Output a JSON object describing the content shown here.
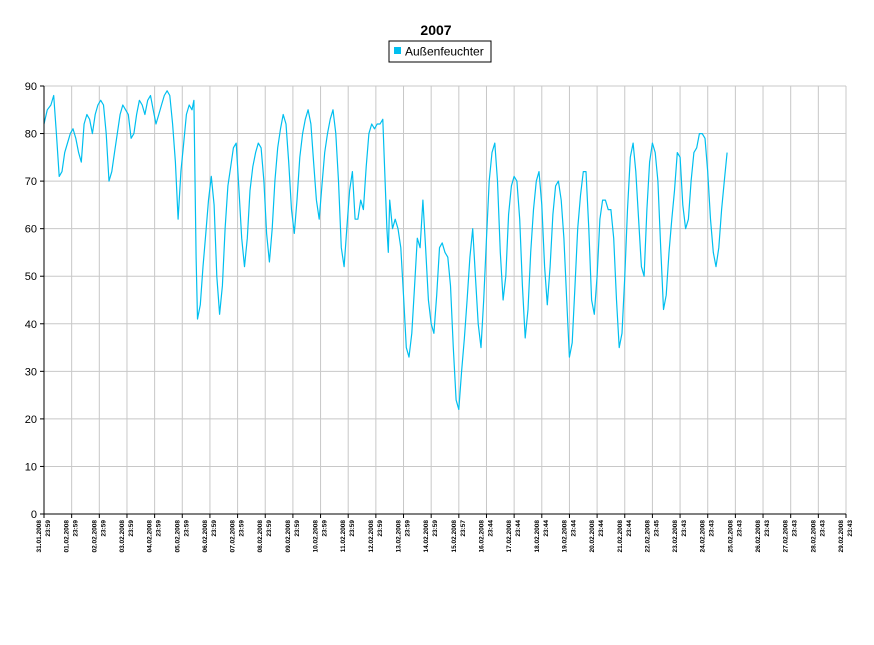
{
  "chart_data": {
    "type": "line",
    "title": "2007",
    "xlabel": "",
    "ylabel": "",
    "ylim": [
      0,
      90
    ],
    "yticks": [
      0,
      10,
      20,
      30,
      40,
      50,
      60,
      70,
      80,
      90
    ],
    "grid": true,
    "legend_position": "top-center",
    "series": [
      {
        "name": "Außenfeuchter",
        "color": "#00BFEF",
        "x": [
          "31.01.2008 23:59",
          "01.02.2008 23:59",
          "02.02.2008 23:59",
          "03.02.2008 23:59",
          "04.02.2008 23:59",
          "05.02.2008 23:59",
          "06.02.2008 23:59",
          "07.02.2008 23:59",
          "08.02.2008 23:59",
          "09.02.2008 23:59",
          "10.02.2008 23:59",
          "11.02.2008 23:59",
          "12.02.2008 23:59",
          "13.02.2008 23:59",
          "14.02.2008 23:59",
          "15.02.2008 23:57",
          "16.02.2008 23:44",
          "17.02.2008 23:44",
          "18.02.2008 23:44",
          "19.02.2008 23:44",
          "20.02.2008 23:44",
          "21.02.2008 23:44",
          "22.02.2008 23:45",
          "23.02.2008 23:43",
          "24.02.2008 23:43",
          "25.02.2008 23:43",
          "26.02.2008 23:43",
          "27.02.2008 23:43",
          "28.02.2008 23:43",
          "29.02.2008 23:43"
        ],
        "points": [
          [
            0.0,
            82
          ],
          [
            0.12,
            85
          ],
          [
            0.25,
            86
          ],
          [
            0.35,
            88
          ],
          [
            0.45,
            80
          ],
          [
            0.55,
            71
          ],
          [
            0.65,
            72
          ],
          [
            0.75,
            76
          ],
          [
            0.85,
            78
          ],
          [
            0.95,
            80
          ],
          [
            1.05,
            81
          ],
          [
            1.15,
            79
          ],
          [
            1.25,
            76
          ],
          [
            1.35,
            74
          ],
          [
            1.45,
            82
          ],
          [
            1.55,
            84
          ],
          [
            1.65,
            83
          ],
          [
            1.75,
            80
          ],
          [
            1.85,
            84
          ],
          [
            1.95,
            86
          ],
          [
            2.05,
            87
          ],
          [
            2.15,
            86
          ],
          [
            2.25,
            80
          ],
          [
            2.35,
            70
          ],
          [
            2.45,
            72
          ],
          [
            2.55,
            76
          ],
          [
            2.65,
            80
          ],
          [
            2.75,
            84
          ],
          [
            2.85,
            86
          ],
          [
            2.95,
            85
          ],
          [
            3.05,
            84
          ],
          [
            3.15,
            79
          ],
          [
            3.25,
            80
          ],
          [
            3.35,
            84
          ],
          [
            3.45,
            87
          ],
          [
            3.55,
            86
          ],
          [
            3.65,
            84
          ],
          [
            3.75,
            87
          ],
          [
            3.85,
            88
          ],
          [
            3.95,
            85
          ],
          [
            4.05,
            82
          ],
          [
            4.15,
            84
          ],
          [
            4.25,
            86
          ],
          [
            4.35,
            88
          ],
          [
            4.45,
            89
          ],
          [
            4.55,
            88
          ],
          [
            4.65,
            82
          ],
          [
            4.75,
            74
          ],
          [
            4.85,
            62
          ],
          [
            4.95,
            72
          ],
          [
            5.05,
            78
          ],
          [
            5.15,
            84
          ],
          [
            5.25,
            86
          ],
          [
            5.35,
            85
          ],
          [
            5.42,
            87
          ],
          [
            5.5,
            54
          ],
          [
            5.55,
            41
          ],
          [
            5.65,
            44
          ],
          [
            5.75,
            52
          ],
          [
            5.85,
            59
          ],
          [
            5.95,
            66
          ],
          [
            6.05,
            71
          ],
          [
            6.15,
            65
          ],
          [
            6.25,
            50
          ],
          [
            6.35,
            42
          ],
          [
            6.45,
            48
          ],
          [
            6.55,
            60
          ],
          [
            6.65,
            69
          ],
          [
            6.75,
            73
          ],
          [
            6.85,
            77
          ],
          [
            6.95,
            78
          ],
          [
            7.05,
            68
          ],
          [
            7.15,
            58
          ],
          [
            7.25,
            52
          ],
          [
            7.35,
            58
          ],
          [
            7.45,
            68
          ],
          [
            7.55,
            73
          ],
          [
            7.65,
            76
          ],
          [
            7.75,
            78
          ],
          [
            7.85,
            77
          ],
          [
            7.95,
            70
          ],
          [
            8.05,
            59
          ],
          [
            8.15,
            53
          ],
          [
            8.25,
            60
          ],
          [
            8.35,
            70
          ],
          [
            8.45,
            77
          ],
          [
            8.55,
            81
          ],
          [
            8.65,
            84
          ],
          [
            8.75,
            82
          ],
          [
            8.85,
            74
          ],
          [
            8.95,
            64
          ],
          [
            9.05,
            59
          ],
          [
            9.15,
            66
          ],
          [
            9.25,
            75
          ],
          [
            9.35,
            80
          ],
          [
            9.45,
            83
          ],
          [
            9.55,
            85
          ],
          [
            9.65,
            82
          ],
          [
            9.75,
            74
          ],
          [
            9.85,
            66
          ],
          [
            9.95,
            62
          ],
          [
            10.05,
            69
          ],
          [
            10.15,
            76
          ],
          [
            10.25,
            80
          ],
          [
            10.35,
            83
          ],
          [
            10.45,
            85
          ],
          [
            10.55,
            80
          ],
          [
            10.65,
            70
          ],
          [
            10.75,
            56
          ],
          [
            10.85,
            52
          ],
          [
            10.95,
            60
          ],
          [
            11.05,
            68
          ],
          [
            11.15,
            72
          ],
          [
            11.25,
            62
          ],
          [
            11.35,
            62
          ],
          [
            11.45,
            66
          ],
          [
            11.55,
            64
          ],
          [
            11.65,
            73
          ],
          [
            11.75,
            80
          ],
          [
            11.85,
            82
          ],
          [
            11.95,
            81
          ],
          [
            12.05,
            82
          ],
          [
            12.15,
            82
          ],
          [
            12.25,
            83
          ],
          [
            12.3,
            75
          ],
          [
            12.4,
            60
          ],
          [
            12.45,
            55
          ],
          [
            12.5,
            66
          ],
          [
            12.6,
            60
          ],
          [
            12.7,
            62
          ],
          [
            12.8,
            60
          ],
          [
            12.9,
            56
          ],
          [
            13.0,
            46
          ],
          [
            13.1,
            35
          ],
          [
            13.2,
            33
          ],
          [
            13.3,
            38
          ],
          [
            13.4,
            48
          ],
          [
            13.5,
            58
          ],
          [
            13.6,
            56
          ],
          [
            13.7,
            66
          ],
          [
            13.8,
            56
          ],
          [
            13.9,
            45
          ],
          [
            14.0,
            40
          ],
          [
            14.1,
            38
          ],
          [
            14.2,
            46
          ],
          [
            14.3,
            56
          ],
          [
            14.4,
            57
          ],
          [
            14.5,
            55
          ],
          [
            14.6,
            54
          ],
          [
            14.7,
            48
          ],
          [
            14.8,
            35
          ],
          [
            14.9,
            24
          ],
          [
            15.0,
            22
          ],
          [
            15.1,
            30
          ],
          [
            15.2,
            37
          ],
          [
            15.3,
            45
          ],
          [
            15.4,
            54
          ],
          [
            15.5,
            60
          ],
          [
            15.6,
            50
          ],
          [
            15.7,
            40
          ],
          [
            15.8,
            35
          ],
          [
            15.9,
            45
          ],
          [
            16.0,
            58
          ],
          [
            16.1,
            70
          ],
          [
            16.2,
            76
          ],
          [
            16.3,
            78
          ],
          [
            16.4,
            70
          ],
          [
            16.5,
            55
          ],
          [
            16.6,
            45
          ],
          [
            16.7,
            50
          ],
          [
            16.8,
            63
          ],
          [
            16.9,
            69
          ],
          [
            17.0,
            71
          ],
          [
            17.1,
            70
          ],
          [
            17.2,
            62
          ],
          [
            17.3,
            48
          ],
          [
            17.4,
            37
          ],
          [
            17.5,
            43
          ],
          [
            17.6,
            55
          ],
          [
            17.7,
            64
          ],
          [
            17.8,
            70
          ],
          [
            17.9,
            72
          ],
          [
            18.0,
            65
          ],
          [
            18.1,
            52
          ],
          [
            18.2,
            44
          ],
          [
            18.3,
            52
          ],
          [
            18.4,
            63
          ],
          [
            18.5,
            69
          ],
          [
            18.6,
            70
          ],
          [
            18.7,
            66
          ],
          [
            18.8,
            58
          ],
          [
            18.9,
            45
          ],
          [
            19.0,
            33
          ],
          [
            19.1,
            36
          ],
          [
            19.2,
            48
          ],
          [
            19.3,
            60
          ],
          [
            19.4,
            67
          ],
          [
            19.5,
            72
          ],
          [
            19.6,
            72
          ],
          [
            19.7,
            60
          ],
          [
            19.8,
            45
          ],
          [
            19.9,
            42
          ],
          [
            20.0,
            50
          ],
          [
            20.1,
            62
          ],
          [
            20.2,
            66
          ],
          [
            20.3,
            66
          ],
          [
            20.4,
            64
          ],
          [
            20.5,
            64
          ],
          [
            20.6,
            58
          ],
          [
            20.7,
            45
          ],
          [
            20.8,
            35
          ],
          [
            20.9,
            38
          ],
          [
            21.0,
            50
          ],
          [
            21.1,
            64
          ],
          [
            21.2,
            75
          ],
          [
            21.3,
            78
          ],
          [
            21.4,
            72
          ],
          [
            21.5,
            62
          ],
          [
            21.6,
            52
          ],
          [
            21.7,
            50
          ],
          [
            21.8,
            64
          ],
          [
            21.9,
            74
          ],
          [
            22.0,
            78
          ],
          [
            22.1,
            76
          ],
          [
            22.2,
            70
          ],
          [
            22.3,
            56
          ],
          [
            22.4,
            43
          ],
          [
            22.5,
            46
          ],
          [
            22.6,
            55
          ],
          [
            22.7,
            62
          ],
          [
            22.8,
            68
          ],
          [
            22.9,
            76
          ],
          [
            23.0,
            75
          ],
          [
            23.1,
            65
          ],
          [
            23.2,
            60
          ],
          [
            23.3,
            62
          ],
          [
            23.4,
            70
          ],
          [
            23.5,
            76
          ],
          [
            23.6,
            77
          ],
          [
            23.7,
            80
          ],
          [
            23.8,
            80
          ],
          [
            23.9,
            79
          ],
          [
            24.0,
            72
          ],
          [
            24.1,
            62
          ],
          [
            24.2,
            55
          ],
          [
            24.3,
            52
          ],
          [
            24.4,
            56
          ],
          [
            24.5,
            64
          ],
          [
            24.6,
            70
          ],
          [
            24.7,
            76
          ]
        ]
      }
    ]
  }
}
